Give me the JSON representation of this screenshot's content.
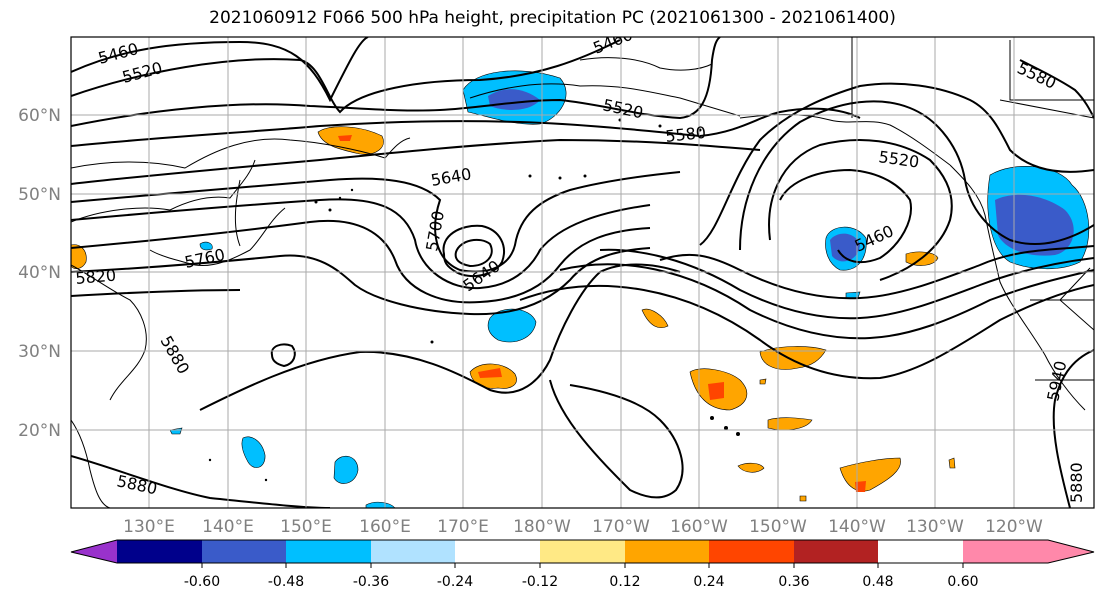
{
  "title": "2021060912 F066 500 hPa height, precipitation PC (2021061300 - 2021061400)",
  "map": {
    "projection": "cylindrical",
    "grid": true,
    "lat_labels": [
      "60°N",
      "50°N",
      "40°N",
      "30°N",
      "20°N"
    ],
    "lon_labels": [
      "130°E",
      "140°E",
      "150°E",
      "160°E",
      "170°E",
      "180°W",
      "170°W",
      "160°W",
      "150°W",
      "140°W",
      "130°W",
      "120°W"
    ],
    "label_color": "#808080",
    "contour_color": "#000000",
    "contour_labels": [
      "5460",
      "5520",
      "5460",
      "5520",
      "5580",
      "5580",
      "5640",
      "5700",
      "5640",
      "5760",
      "5820",
      "5880",
      "5880",
      "5520",
      "5460",
      "5940",
      "5880"
    ]
  },
  "colorbar": {
    "tick_labels": [
      "-0.60",
      "-0.48",
      "-0.36",
      "-0.24",
      "-0.12",
      "0.12",
      "0.24",
      "0.36",
      "0.48",
      "0.60"
    ],
    "colors": [
      "#9932CC",
      "#00008B",
      "#3A5BC9",
      "#00BFFF",
      "#B0E2FF",
      "#FFFFFF",
      "#FFE985",
      "#FFA500",
      "#FF4500",
      "#B22222",
      "#FF88AA"
    ],
    "extend": "both"
  }
}
